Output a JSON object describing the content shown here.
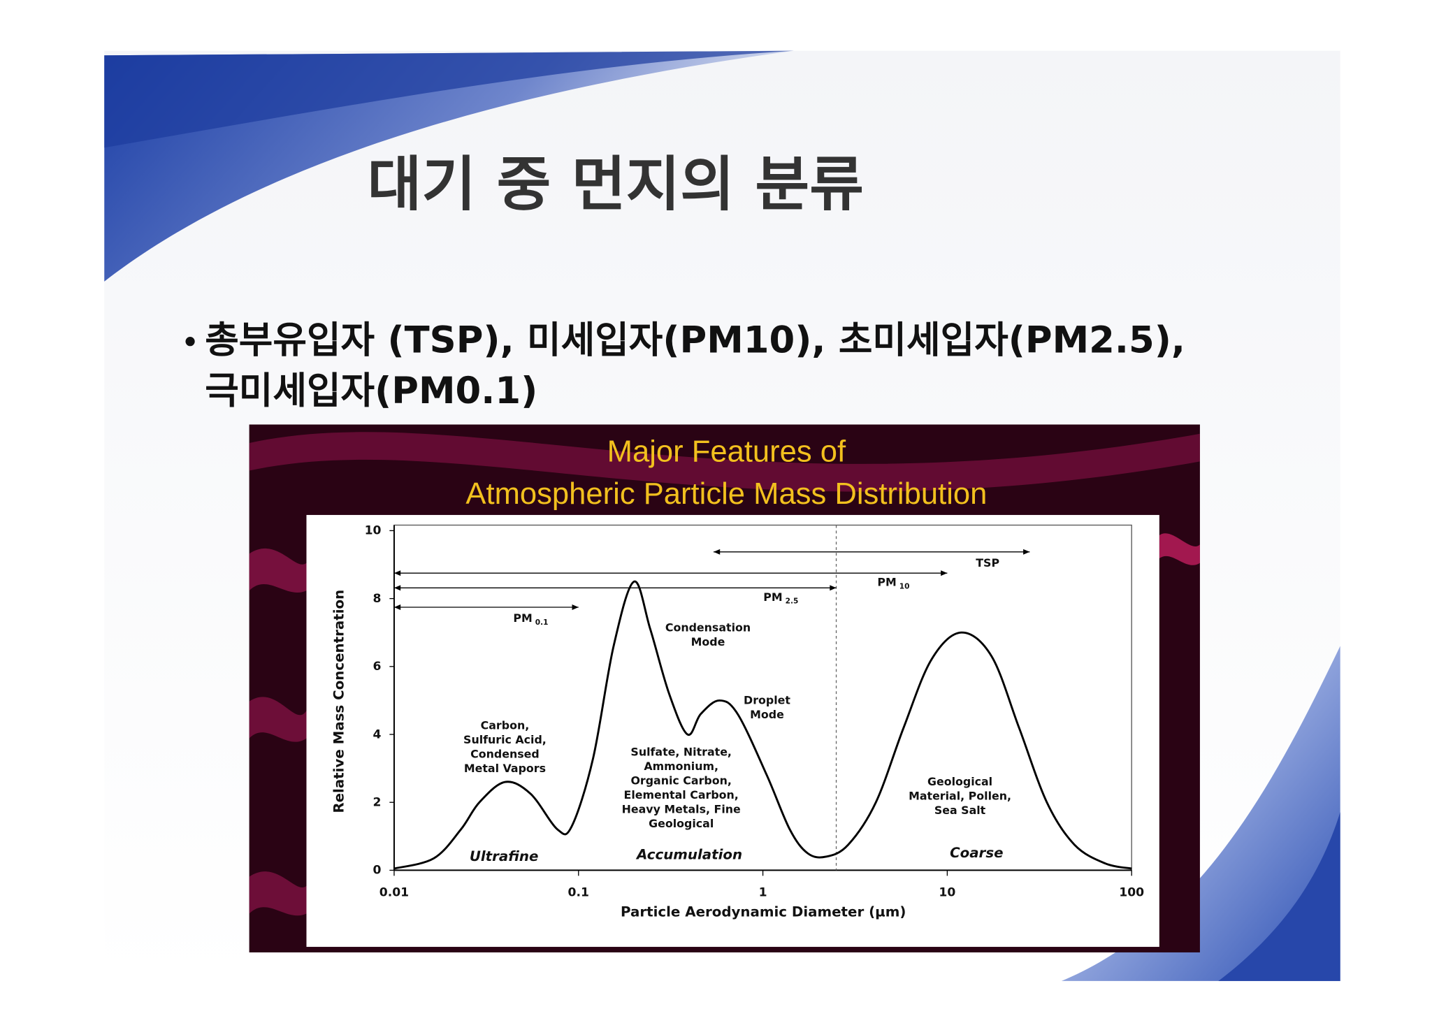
{
  "slide": {
    "title": "대기 중 먼지의 분류",
    "bullet_lines": [
      "총부유입자 (TSP), 미세입자(PM10), 초미세입자(PM2.5),",
      "극미세입자(PM0.1)"
    ]
  },
  "chart_data": {
    "type": "line",
    "title": [
      "Major Features of",
      "Atmospheric Particle Mass Distribution"
    ],
    "x_label": "Particle Aerodynamic Diameter (µm)",
    "y_label": "Relative Mass Concentration",
    "x_scale": "log",
    "xlim": [
      0.01,
      100
    ],
    "xticks": [
      0.01,
      0.1,
      1,
      10,
      100
    ],
    "ylim": [
      0,
      10
    ],
    "yticks": [
      0,
      2,
      4,
      6,
      8,
      10
    ],
    "x": [
      0.01,
      0.0164,
      0.023,
      0.029,
      0.04,
      0.055,
      0.077,
      0.092,
      0.12,
      0.155,
      0.2,
      0.245,
      0.31,
      0.39,
      0.46,
      0.58,
      0.73,
      1.05,
      1.4,
      1.75,
      2.2,
      2.9,
      4.1,
      5.8,
      8.2,
      11.9,
      17.4,
      24.5,
      34.7,
      49,
      72,
      100
    ],
    "series": [
      {
        "color": "#000000",
        "values": [
          0.05,
          0.35,
          1.2,
          2.0,
          2.6,
          2.25,
          1.2,
          1.3,
          3.3,
          6.6,
          8.5,
          7.1,
          5.2,
          4.0,
          4.6,
          5.0,
          4.6,
          2.8,
          1.2,
          0.5,
          0.4,
          0.75,
          2.0,
          4.2,
          6.2,
          7.0,
          6.3,
          4.2,
          2.0,
          0.75,
          0.2,
          0.05
        ]
      }
    ],
    "ranges": [
      {
        "label": "PM",
        "sub": "0.1",
        "from": 0.01,
        "to": 0.1
      },
      {
        "label": "PM",
        "sub": "2.5",
        "from": 0.01,
        "to": 2.5
      },
      {
        "label": "PM",
        "sub": "10",
        "from": 0.01,
        "to": 10
      },
      {
        "label": "TSP",
        "from": 0.54,
        "to": 28
      }
    ],
    "cutoff": 2.5,
    "annotations": [
      {
        "lines": [
          "Carbon,",
          "Sulfuric Acid,",
          "Condensed",
          "Metal Vapors"
        ]
      },
      {
        "lines": [
          "Condensation",
          "Mode"
        ]
      },
      {
        "lines": [
          "Droplet",
          "Mode"
        ]
      },
      {
        "lines": [
          "Sulfate, Nitrate,",
          "Ammonium,",
          "Organic Carbon,",
          "Elemental Carbon,",
          "Heavy Metals, Fine",
          "Geological"
        ]
      },
      {
        "lines": [
          "Geological",
          "Material, Pollen,",
          "Sea Salt"
        ]
      }
    ],
    "modes": [
      "Ultrafine",
      "Accumulation",
      "Coarse"
    ]
  }
}
